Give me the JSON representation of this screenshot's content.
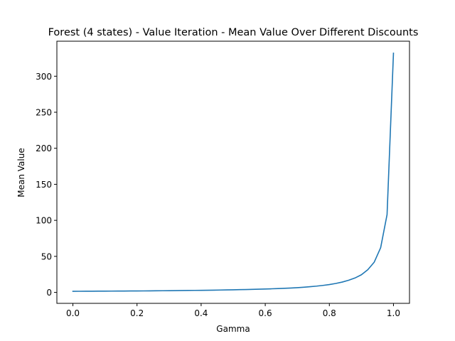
{
  "chart_data": {
    "type": "line",
    "title": "Forest (4 states) - Value Iteration - Mean Value Over Different Discounts",
    "xlabel": "Gamma",
    "ylabel": "Mean Value",
    "xlim": [
      -0.05,
      1.05
    ],
    "ylim": [
      -15.2,
      348.6
    ],
    "xticks": [
      0.0,
      0.2,
      0.4,
      0.6,
      0.8,
      1.0
    ],
    "xtick_labels": [
      "0.0",
      "0.2",
      "0.4",
      "0.6",
      "0.8",
      "1.0"
    ],
    "yticks": [
      0,
      50,
      100,
      150,
      200,
      250,
      300
    ],
    "ytick_labels": [
      "0",
      "50",
      "100",
      "150",
      "200",
      "250",
      "300"
    ],
    "grid": false,
    "legend": "none",
    "line_color": "#1f77b4",
    "series": [
      {
        "x": [
          0.0,
          0.02,
          0.04,
          0.06,
          0.08,
          0.1,
          0.12,
          0.14,
          0.16,
          0.18,
          0.2,
          0.22,
          0.24,
          0.26,
          0.28,
          0.3,
          0.32,
          0.34,
          0.36,
          0.38,
          0.4,
          0.42,
          0.44,
          0.46,
          0.48,
          0.5,
          0.52,
          0.54,
          0.56,
          0.58,
          0.6,
          0.62,
          0.64,
          0.66,
          0.68,
          0.7,
          0.72,
          0.74,
          0.76,
          0.78,
          0.8,
          0.82,
          0.84,
          0.86,
          0.88,
          0.9,
          0.92,
          0.94,
          0.96,
          0.98,
          1.0
        ],
        "values": [
          1.5,
          1.55,
          1.6,
          1.65,
          1.7,
          1.75,
          1.8,
          1.85,
          1.9,
          1.95,
          2.0,
          2.05,
          2.1,
          2.2,
          2.3,
          2.4,
          2.5,
          2.6,
          2.7,
          2.8,
          2.9,
          3.0,
          3.15,
          3.3,
          3.45,
          3.6,
          3.8,
          4.0,
          4.2,
          4.45,
          4.7,
          5.0,
          5.35,
          5.7,
          6.1,
          6.6,
          7.2,
          7.9,
          8.7,
          9.7,
          10.9,
          12.4,
          14.3,
          16.8,
          20.0,
          24.5,
          31.5,
          42.0,
          62.0,
          108.0,
          332.0
        ]
      }
    ]
  }
}
